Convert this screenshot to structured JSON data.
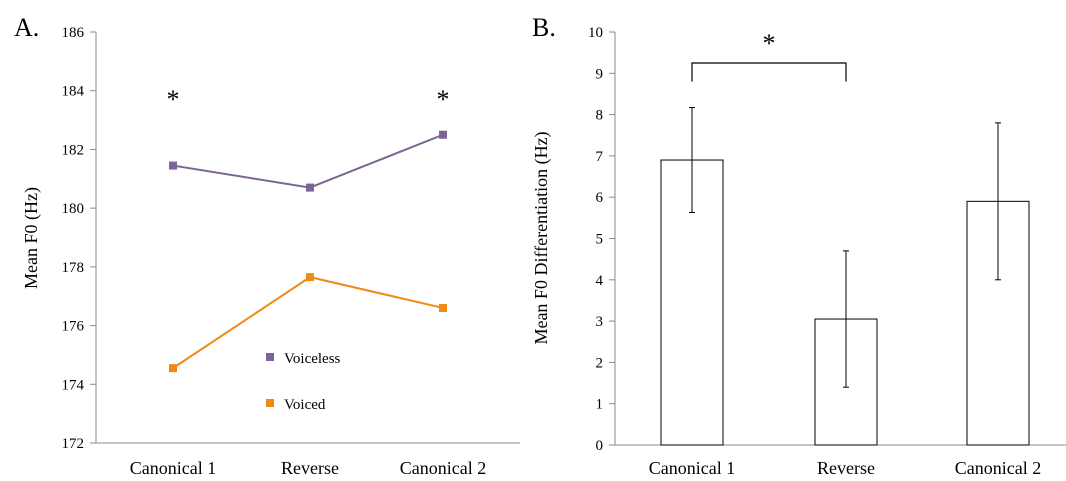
{
  "colors": {
    "voiceless": "#7d6494",
    "voiced": "#ef8a17",
    "axis": "#8a8a8a",
    "bar_edge": "#000000"
  },
  "chart_data": [
    {
      "type": "line",
      "panel_label": "A.",
      "categories": [
        "Canonical 1",
        "Reverse",
        "Canonical 2"
      ],
      "series": [
        {
          "name": "Voiceless",
          "values": [
            181.45,
            180.7,
            182.5
          ]
        },
        {
          "name": "Voiced",
          "values": [
            174.55,
            177.65,
            176.6
          ]
        }
      ],
      "xlabel": "",
      "ylabel": "Mean F0 (Hz)",
      "ylim": [
        172,
        186
      ],
      "yticks": [
        "172",
        "174",
        "176",
        "178",
        "180",
        "182",
        "184",
        "186"
      ],
      "grid": false,
      "legend_position": "lower-center",
      "significance": [
        {
          "category": "Canonical 1",
          "label": "*"
        },
        {
          "category": "Canonical 2",
          "label": "*"
        }
      ]
    },
    {
      "type": "bar",
      "panel_label": "B.",
      "categories": [
        "Canonical 1",
        "Reverse",
        "Canonical 2"
      ],
      "values": [
        6.9,
        3.05,
        5.9
      ],
      "error": [
        1.27,
        1.65,
        1.9
      ],
      "xlabel": "",
      "ylabel": "Mean F0 Differentiation (Hz)",
      "ylim": [
        0,
        10
      ],
      "yticks": [
        "0",
        "1",
        "2",
        "3",
        "4",
        "5",
        "6",
        "7",
        "8",
        "9",
        "10"
      ],
      "grid": false,
      "significance": [
        {
          "from": "Canonical 1",
          "to": "Reverse",
          "label": "*"
        }
      ]
    }
  ]
}
